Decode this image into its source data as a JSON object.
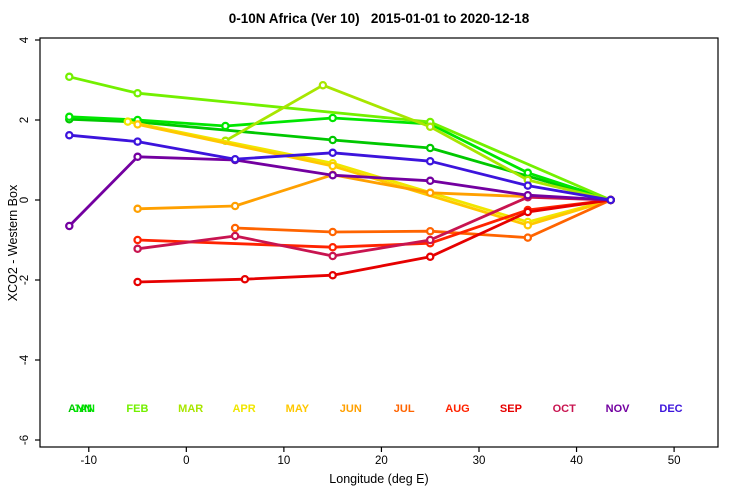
{
  "title": "0-10N Africa (Ver 10)   2015-01-01 to 2020-12-18",
  "chart_data": {
    "type": "line",
    "title": "0-10N Africa (Ver 10)   2015-01-01 to 2020-12-18",
    "xlabel": "Longitude (deg E)",
    "ylabel": "XCO2 - Western Box",
    "xlim": [
      -15,
      54.5
    ],
    "ylim": [
      -6,
      4
    ],
    "xticks": [
      -10,
      0,
      10,
      20,
      30,
      40,
      50
    ],
    "yticks": [
      4,
      2,
      0,
      -2,
      -4,
      -6
    ],
    "grid": false,
    "marker": "open-circle",
    "legend_position": "bottom-inside",
    "convergence_point": {
      "lon": 43.5,
      "value": 0
    },
    "series": [
      {
        "name": "ANN",
        "color": "#00C800",
        "points": [
          [
            -12,
            2.02
          ],
          [
            -5,
            1.95
          ],
          [
            15,
            1.5
          ],
          [
            25,
            1.3
          ],
          [
            43.5,
            0
          ]
        ]
      },
      {
        "name": "JAN",
        "color": "#00E600",
        "points": [
          [
            -12,
            2.08
          ],
          [
            -5,
            2.0
          ],
          [
            4,
            1.85
          ],
          [
            15,
            2.05
          ],
          [
            25,
            1.9
          ],
          [
            35,
            0.68
          ],
          [
            43.5,
            0
          ]
        ]
      },
      {
        "name": "FEB",
        "color": "#73F000",
        "points": [
          [
            -12,
            3.08
          ],
          [
            -5,
            2.67
          ],
          [
            25,
            1.95
          ],
          [
            43.5,
            0
          ]
        ]
      },
      {
        "name": "MAR",
        "color": "#A8E600",
        "points": [
          [
            4,
            1.48
          ],
          [
            14,
            2.87
          ],
          [
            25,
            1.83
          ],
          [
            35,
            0.5
          ],
          [
            43.5,
            0
          ]
        ]
      },
      {
        "name": "APR",
        "color": "#F0E600",
        "points": [
          [
            -6,
            1.96
          ],
          [
            15,
            0.92
          ],
          [
            35,
            -0.55
          ],
          [
            43.5,
            0
          ]
        ]
      },
      {
        "name": "MAY",
        "color": "#FFC800",
        "points": [
          [
            -5,
            1.89
          ],
          [
            15,
            0.85
          ],
          [
            35,
            -0.63
          ],
          [
            43.5,
            0
          ]
        ]
      },
      {
        "name": "JUN",
        "color": "#FFA000",
        "points": [
          [
            -5,
            -0.22
          ],
          [
            5,
            -0.15
          ],
          [
            15,
            0.63
          ],
          [
            25,
            0.18
          ],
          [
            43.5,
            0
          ]
        ]
      },
      {
        "name": "JUL",
        "color": "#FF6400",
        "points": [
          [
            5,
            -0.7
          ],
          [
            15,
            -0.8
          ],
          [
            25,
            -0.78
          ],
          [
            35,
            -0.94
          ],
          [
            43.5,
            0
          ]
        ]
      },
      {
        "name": "AUG",
        "color": "#FF2300",
        "points": [
          [
            -5,
            -1.0
          ],
          [
            15,
            -1.18
          ],
          [
            25,
            -1.08
          ],
          [
            35,
            -0.25
          ],
          [
            43.5,
            0
          ]
        ]
      },
      {
        "name": "SEP",
        "color": "#E60000",
        "points": [
          [
            -5,
            -2.05
          ],
          [
            6,
            -1.98
          ],
          [
            15,
            -1.88
          ],
          [
            25,
            -1.42
          ],
          [
            35,
            -0.3
          ],
          [
            43.5,
            0
          ]
        ]
      },
      {
        "name": "OCT",
        "color": "#C81450",
        "points": [
          [
            -5,
            -1.22
          ],
          [
            5,
            -0.9
          ],
          [
            15,
            -1.4
          ],
          [
            25,
            -1.0
          ],
          [
            35,
            0.07
          ],
          [
            43.5,
            0
          ]
        ]
      },
      {
        "name": "NOV",
        "color": "#7300A0",
        "points": [
          [
            -12,
            -0.65
          ],
          [
            -5,
            1.08
          ],
          [
            5,
            1.0
          ],
          [
            15,
            0.62
          ],
          [
            25,
            0.48
          ],
          [
            35,
            0.12
          ],
          [
            43.5,
            0
          ]
        ]
      },
      {
        "name": "DEC",
        "color": "#3C14DC",
        "points": [
          [
            -12,
            1.62
          ],
          [
            -5,
            1.46
          ],
          [
            5,
            1.02
          ],
          [
            15,
            1.18
          ],
          [
            25,
            0.97
          ],
          [
            35,
            0.36
          ],
          [
            43.5,
            0
          ]
        ]
      }
    ],
    "legend_months": [
      {
        "label": "JAN",
        "color": "#00E600"
      },
      {
        "label": "FEB",
        "color": "#73F000"
      },
      {
        "label": "MAR",
        "color": "#A8E600"
      },
      {
        "label": "APR",
        "color": "#F0E600"
      },
      {
        "label": "MAY",
        "color": "#FFC800"
      },
      {
        "label": "JUN",
        "color": "#FFA000"
      },
      {
        "label": "JUL",
        "color": "#FF6400"
      },
      {
        "label": "AUG",
        "color": "#FF2300"
      },
      {
        "label": "SEP",
        "color": "#E60000"
      },
      {
        "label": "OCT",
        "color": "#C81450"
      },
      {
        "label": "NOV",
        "color": "#7300A0"
      },
      {
        "label": "DEC",
        "color": "#3C14DC"
      }
    ],
    "annual_overlay_label": {
      "label": "ANN",
      "color": "#00C800"
    }
  }
}
